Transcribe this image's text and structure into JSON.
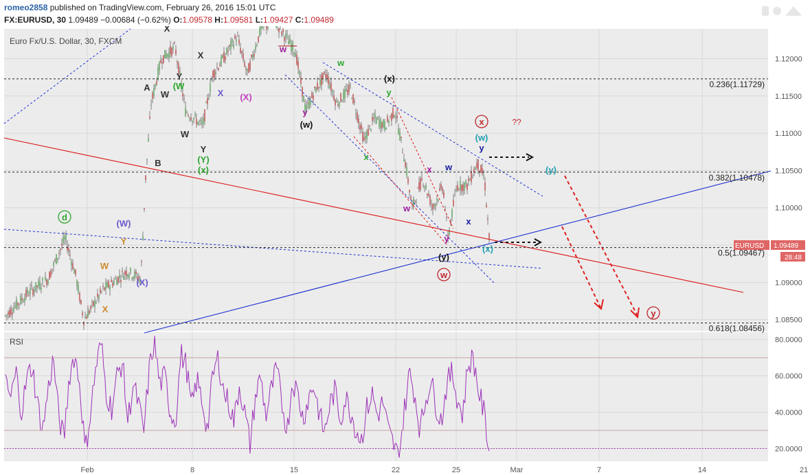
{
  "header": {
    "author": "romeo2858",
    "published_text": "published on TradingView.com, February 26, 2016 15:01 UTC",
    "symbol": "FX:EURUSD, 30",
    "last": "1.09489",
    "change": "−0.00684 (−0.62%)",
    "o_label": "O:",
    "o_value": "1.09578",
    "h_label": "H:",
    "h_value": "1.09581",
    "l_label": "L:",
    "l_value": "1.09427",
    "c_label": "C:",
    "c_value": "1.09489"
  },
  "chart_data": [
    {
      "type": "candlestick",
      "title": "Euro Fx/U.S. Dollar, 30, FXCM",
      "y_ticks": [
        "1.12000",
        "1.11500",
        "1.11000",
        "1.10500",
        "1.10000",
        "1.09500",
        "1.09000",
        "1.08500"
      ],
      "ylim": [
        1.0835,
        1.124
      ],
      "x_ticks": [
        "Feb",
        "8",
        "15",
        "22",
        "25",
        "Mar",
        "7",
        "14",
        "21"
      ],
      "fib_levels": [
        {
          "label": "0.236(1.11729)",
          "value": 1.11729
        },
        {
          "label": "0.382(1.10478)",
          "value": 1.10478
        },
        {
          "label": "0.5(1.09467)",
          "value": 1.09467
        },
        {
          "label": "0.618(1.08456)",
          "value": 1.08456
        }
      ],
      "last_price_tag": {
        "symbol": "EURUSD",
        "price": "1.09489",
        "countdown": "28:48",
        "color": "#e06666"
      },
      "wave_labels": [
        {
          "text": "d",
          "color": "#2ea62e"
        },
        {
          "text": "(W)",
          "color": "#6a5acd"
        },
        {
          "text": "Y",
          "color": "#cc8a2e"
        },
        {
          "text": "W",
          "color": "#cc8a2e"
        },
        {
          "text": "X",
          "color": "#cc8a2e"
        },
        {
          "text": "(X)",
          "color": "#6a5acd"
        },
        {
          "text": "A",
          "color": "#333333"
        },
        {
          "text": "B",
          "color": "#333333"
        },
        {
          "text": "W",
          "color": "#333333"
        },
        {
          "text": "(W",
          "color": "#2ea62e"
        },
        {
          "text": "X",
          "color": "#333333"
        },
        {
          "text": "Y",
          "color": "#333333"
        },
        {
          "text": "W",
          "color": "#333333"
        },
        {
          "text": "X",
          "color": "#333333"
        },
        {
          "text": "Y",
          "color": "#333333"
        },
        {
          "text": "(Y)",
          "color": "#2ea62e"
        },
        {
          "text": "(x)",
          "color": "#2ea62e"
        },
        {
          "text": "X",
          "color": "#6a5acd"
        },
        {
          "text": "(X)",
          "color": "#c040c0"
        },
        {
          "text": "w",
          "color": "#a020a0"
        },
        {
          "text": "y",
          "color": "#a020a0"
        },
        {
          "text": "(w)",
          "color": "#111111"
        },
        {
          "text": "w",
          "color": "#2ea62e"
        },
        {
          "text": "(x)",
          "color": "#111111"
        },
        {
          "text": "y",
          "color": "#2ea62e"
        },
        {
          "text": "x",
          "color": "#2ea62e"
        },
        {
          "text": "w",
          "color": "#a020a0"
        },
        {
          "text": "x",
          "color": "#a020a0"
        },
        {
          "text": "y",
          "color": "#a020a0"
        },
        {
          "text": "w",
          "color": "#1a1aa0"
        },
        {
          "text": "x",
          "color": "#1a1aa0"
        },
        {
          "text": "y",
          "color": "#1a1aa0"
        },
        {
          "text": "(w)",
          "color": "#20a0b0"
        },
        {
          "text": "(x)",
          "color": "#20a0b0"
        },
        {
          "text": "(y)",
          "color": "#20a0b0"
        },
        {
          "text": "(y)",
          "color": "#111111"
        },
        {
          "text": "w",
          "color": "#c0262d"
        },
        {
          "text": "x",
          "color": "#c0262d"
        },
        {
          "text": "??",
          "color": "#c0262d"
        },
        {
          "text": "y",
          "color": "#c0262d"
        }
      ]
    },
    {
      "type": "line",
      "title": "RSI",
      "y_ticks": [
        "80.0000",
        "60.0000",
        "40.0000",
        "20.0000"
      ],
      "ylim": [
        13,
        84
      ],
      "levels": [
        70,
        30,
        20
      ],
      "series": [
        {
          "values": [
            55,
            48,
            62,
            40,
            58,
            66,
            45,
            30,
            52,
            70,
            38,
            25,
            60,
            72,
            55,
            18,
            40,
            65,
            78,
            50,
            42,
            60,
            68,
            35,
            55,
            45,
            28,
            62,
            80,
            55,
            60,
            40,
            35,
            72,
            66,
            42,
            58,
            46,
            30,
            60,
            70,
            52,
            45,
            35,
            55,
            40,
            22,
            48,
            60,
            38,
            52,
            64,
            45,
            30,
            58,
            50,
            36,
            48,
            55,
            40,
            28,
            44,
            52,
            36,
            48,
            40,
            30,
            25,
            42,
            50,
            38,
            46,
            30,
            22,
            15,
            40,
            62,
            50,
            30,
            46,
            58,
            44,
            35,
            55,
            62,
            48,
            38,
            66,
            70,
            52,
            40,
            20
          ]
        }
      ]
    }
  ]
}
